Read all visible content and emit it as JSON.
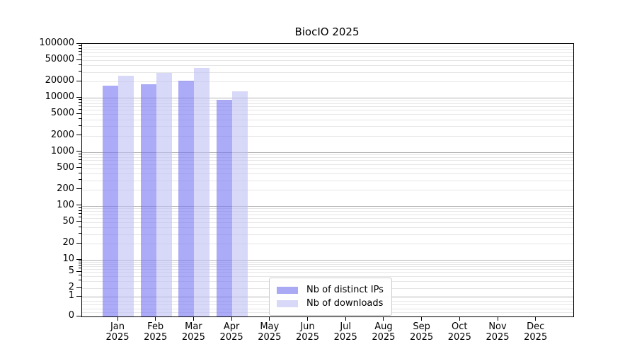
{
  "chart_data": {
    "type": "bar",
    "title": "BiocIO 2025",
    "x_tick_months": [
      "Jan",
      "Feb",
      "Mar",
      "Apr",
      "May",
      "Jun",
      "Jul",
      "Aug",
      "Sep",
      "Oct",
      "Nov",
      "Dec"
    ],
    "x_tick_year": "2025",
    "y_ticks": [
      100000,
      50000,
      20000,
      10000,
      5000,
      2000,
      1000,
      500,
      200,
      100,
      50,
      20,
      10,
      5,
      2,
      1,
      0
    ],
    "ylim": [
      0,
      100000
    ],
    "yscale": "symlog",
    "grid": true,
    "legend_position": "lower center",
    "series": [
      {
        "name": "Nb of distinct IPs",
        "bar_color": "rgba(115,115,242,0.6)",
        "swatch_color": "#a9a9f4",
        "values": [
          16900,
          18100,
          20600,
          9200,
          null,
          null,
          null,
          null,
          null,
          null,
          null,
          null
        ]
      },
      {
        "name": "Nb of downloads",
        "bar_color": "rgba(190,190,245,0.6)",
        "swatch_color": "#d8d8f8",
        "values": [
          25900,
          29300,
          35800,
          13300,
          null,
          null,
          null,
          null,
          null,
          null,
          null,
          null
        ]
      }
    ],
    "colors": {
      "grid_major": "#b2b2b2",
      "grid_minor": "#e6e6e6",
      "axis": "#000000",
      "background": "#ffffff"
    }
  }
}
